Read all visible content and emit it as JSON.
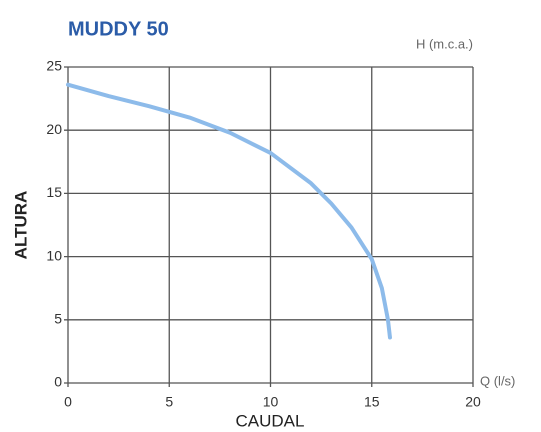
{
  "chart_data": {
    "type": "line",
    "title": "MUDDY 50",
    "x_label": "CAUDAL",
    "y_label": "ALTURA",
    "x_unit_label": "Q (l/s)",
    "y_unit_label": "H (m.c.a.)",
    "x": [
      0,
      2,
      4,
      6,
      8,
      10,
      12,
      13,
      14,
      15,
      15.5,
      15.8,
      15.9
    ],
    "series": [
      {
        "name": "MUDDY 50",
        "color": "#8dbbea",
        "values": [
          23.6,
          22.7,
          21.9,
          21.0,
          19.8,
          18.2,
          15.8,
          14.2,
          12.3,
          9.8,
          7.5,
          5,
          3.6
        ]
      }
    ],
    "xlim": [
      0,
      20
    ],
    "ylim": [
      0,
      25
    ],
    "xticks": [
      0,
      5,
      10,
      15,
      20
    ],
    "yticks": [
      0,
      5,
      10,
      15,
      20,
      25
    ],
    "grid": true
  }
}
